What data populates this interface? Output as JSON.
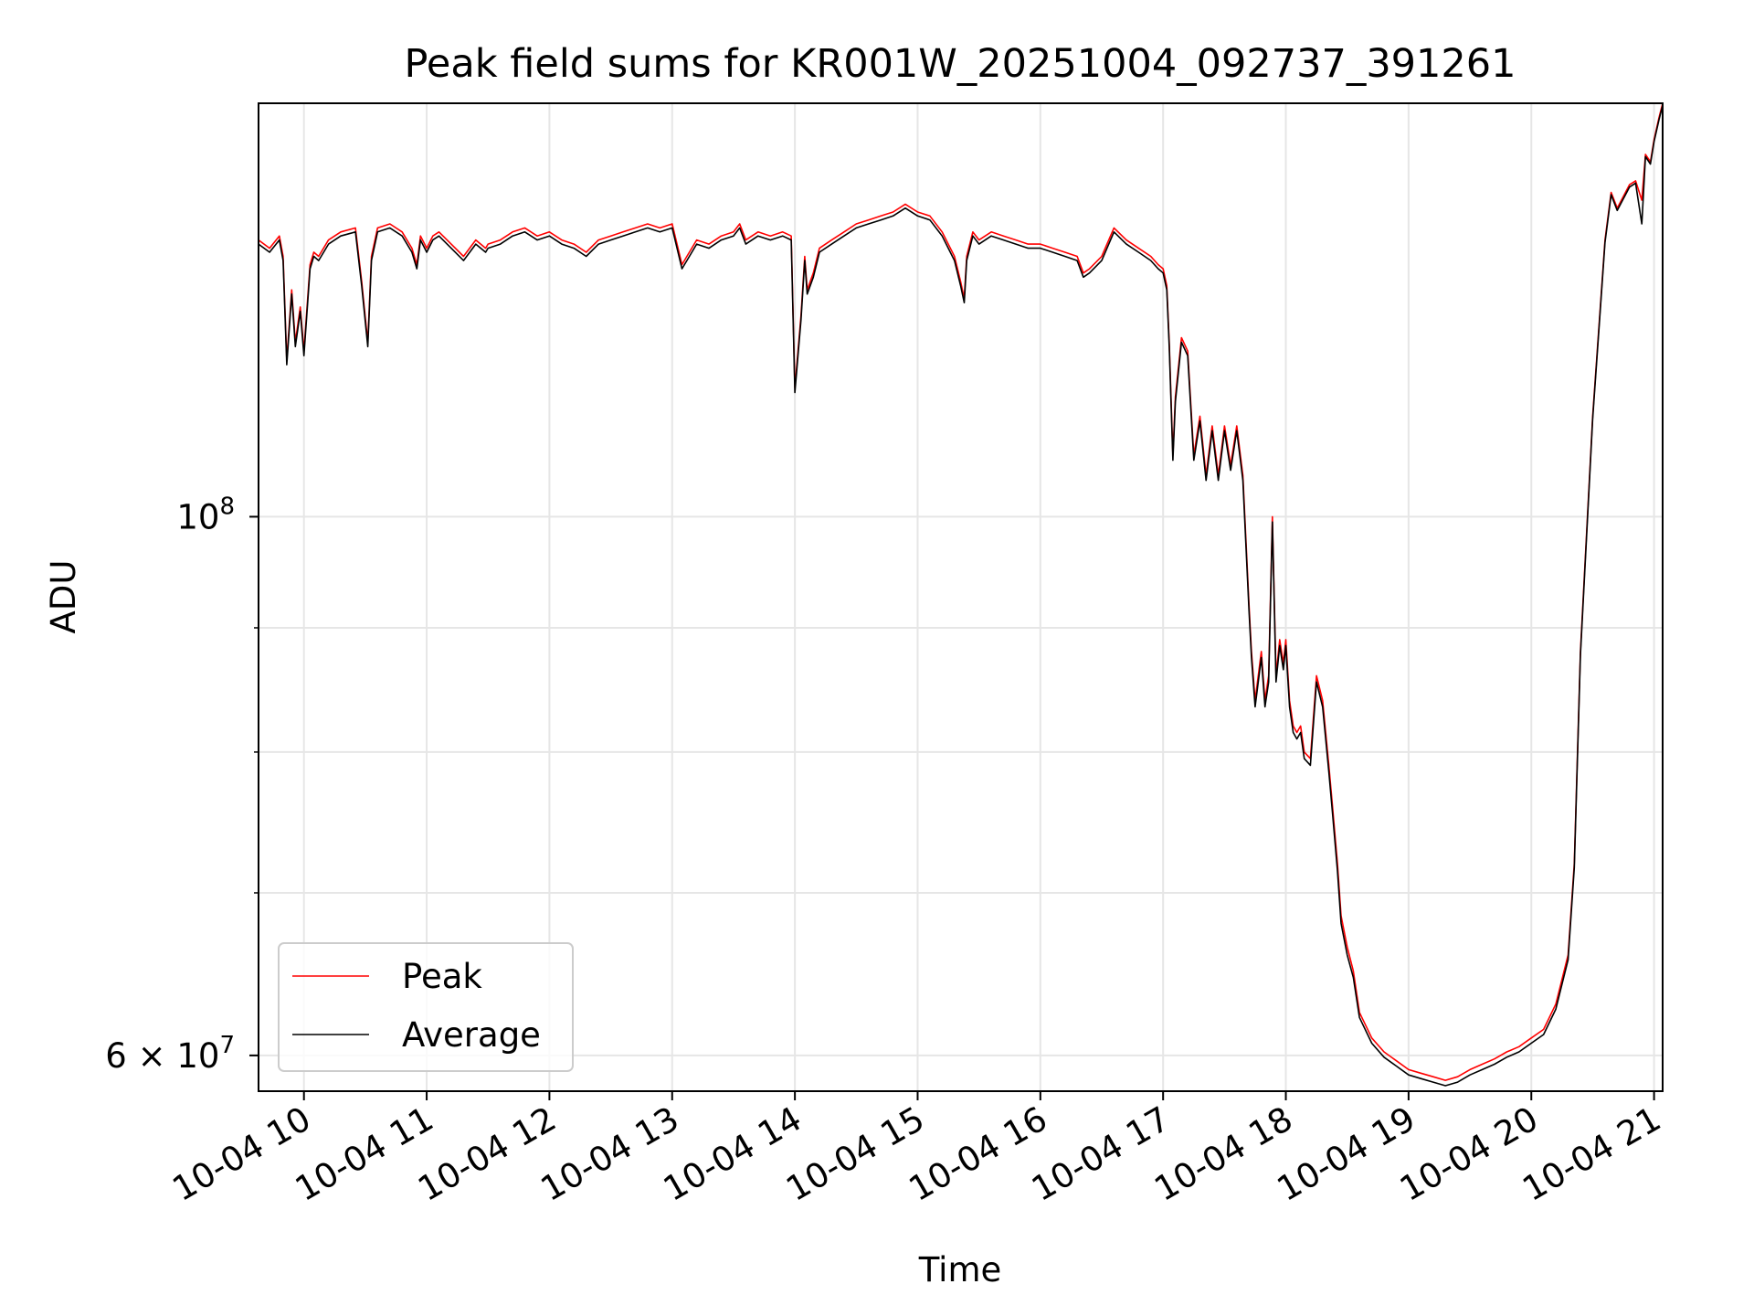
{
  "chart_data": {
    "type": "line",
    "title": "Peak field sums for KR001W_20251004_092737_391261",
    "xlabel": "Time",
    "ylabel": "ADU",
    "y_scale": "log",
    "ylim": [
      58000000,
      148000000
    ],
    "xlim_hours": [
      9.63,
      21.07
    ],
    "grid": true,
    "legend_position": "lower-left",
    "x_tick_hours": [
      10,
      11,
      12,
      13,
      14,
      15,
      16,
      17,
      18,
      19,
      20,
      21
    ],
    "x_tick_labels": [
      "10-04 10",
      "10-04 11",
      "10-04 12",
      "10-04 13",
      "10-04 14",
      "10-04 15",
      "10-04 16",
      "10-04 17",
      "10-04 18",
      "10-04 19",
      "10-04 20",
      "10-04 21"
    ],
    "y_major_ticks": [
      {
        "value": 100000000,
        "label_base": "10",
        "label_exp": "8"
      },
      {
        "value": 60000000,
        "label_base": "6 × 10",
        "label_exp": "7"
      }
    ],
    "y_minor_ticks": [
      70000000,
      80000000,
      90000000
    ],
    "series": [
      {
        "name": "Peak",
        "color": "#ff0000",
        "x_hours": [
          9.63,
          9.72,
          9.8,
          9.83,
          9.86,
          9.9,
          9.93,
          9.97,
          10.0,
          10.05,
          10.08,
          10.12,
          10.2,
          10.3,
          10.42,
          10.47,
          10.52,
          10.55,
          10.6,
          10.7,
          10.8,
          10.88,
          10.92,
          10.95,
          11.0,
          11.05,
          11.1,
          11.2,
          11.3,
          11.4,
          11.48,
          11.5,
          11.6,
          11.7,
          11.8,
          11.9,
          12.0,
          12.1,
          12.2,
          12.3,
          12.4,
          12.5,
          12.6,
          12.7,
          12.8,
          12.9,
          13.0,
          13.08,
          13.12,
          13.2,
          13.3,
          13.4,
          13.5,
          13.55,
          13.6,
          13.7,
          13.8,
          13.9,
          13.97,
          14.0,
          14.05,
          14.08,
          14.1,
          14.15,
          14.2,
          14.3,
          14.4,
          14.5,
          14.6,
          14.7,
          14.8,
          14.9,
          15.0,
          15.1,
          15.2,
          15.3,
          15.35,
          15.38,
          15.4,
          15.45,
          15.5,
          15.6,
          15.7,
          15.8,
          15.9,
          16.0,
          16.1,
          16.2,
          16.3,
          16.35,
          16.4,
          16.5,
          16.6,
          16.7,
          16.8,
          16.9,
          16.96,
          17.0,
          17.03,
          17.05,
          17.08,
          17.1,
          17.15,
          17.2,
          17.25,
          17.3,
          17.35,
          17.4,
          17.45,
          17.5,
          17.55,
          17.6,
          17.65,
          17.7,
          17.72,
          17.75,
          17.8,
          17.83,
          17.86,
          17.89,
          17.92,
          17.95,
          17.98,
          18.0,
          18.03,
          18.06,
          18.09,
          18.12,
          18.15,
          18.2,
          18.25,
          18.3,
          18.35,
          18.38,
          18.42,
          18.45,
          18.5,
          18.55,
          18.6,
          18.7,
          18.8,
          18.9,
          19.0,
          19.1,
          19.2,
          19.3,
          19.4,
          19.5,
          19.6,
          19.7,
          19.8,
          19.9,
          20.0,
          20.1,
          20.2,
          20.3,
          20.35,
          20.4,
          20.5,
          20.6,
          20.65,
          20.7,
          20.8,
          20.85,
          20.9,
          20.93,
          20.97,
          21.0,
          21.04,
          21.07
        ],
        "y_adu": [
          130000000,
          129000000,
          130500000,
          128000000,
          116000000,
          124000000,
          118000000,
          122000000,
          117000000,
          127000000,
          128500000,
          128000000,
          130000000,
          131000000,
          131500000,
          125000000,
          118000000,
          128000000,
          131500000,
          132000000,
          131000000,
          129000000,
          127000000,
          130500000,
          129000000,
          130500000,
          131000000,
          129500000,
          128000000,
          130000000,
          129000000,
          129500000,
          130000000,
          131000000,
          131500000,
          130500000,
          131000000,
          130000000,
          129500000,
          128500000,
          130000000,
          130500000,
          131000000,
          131500000,
          132000000,
          131500000,
          132000000,
          127000000,
          128000000,
          130000000,
          129500000,
          130500000,
          131000000,
          132000000,
          130000000,
          131000000,
          130500000,
          131000000,
          130500000,
          113000000,
          121000000,
          128000000,
          124000000,
          126000000,
          129000000,
          130000000,
          131000000,
          132000000,
          132500000,
          133000000,
          133500000,
          134500000,
          133500000,
          133000000,
          131000000,
          128000000,
          125000000,
          123000000,
          128000000,
          131000000,
          130000000,
          131000000,
          130500000,
          130000000,
          129500000,
          129500000,
          129000000,
          128500000,
          128000000,
          126000000,
          126500000,
          128000000,
          131500000,
          130000000,
          129000000,
          128000000,
          127000000,
          126500000,
          124500000,
          118000000,
          106000000,
          112000000,
          118500000,
          117000000,
          106000000,
          110000000,
          104000000,
          109000000,
          104000000,
          109000000,
          105000000,
          109000000,
          104000000,
          92000000,
          88000000,
          84000000,
          88000000,
          84000000,
          86000000,
          100000000,
          86000000,
          89000000,
          87000000,
          89000000,
          84000000,
          82000000,
          81500000,
          82000000,
          80000000,
          79500000,
          86000000,
          84000000,
          79000000,
          76000000,
          72000000,
          68500000,
          66500000,
          65000000,
          62500000,
          61000000,
          60200000,
          59700000,
          59200000,
          59000000,
          58800000,
          58600000,
          58800000,
          59200000,
          59500000,
          59800000,
          60200000,
          60500000,
          61000000,
          61500000,
          63000000,
          66000000,
          72000000,
          88000000,
          110000000,
          130000000,
          136000000,
          134000000,
          137000000,
          137500000,
          135000000,
          141000000,
          140000000,
          143000000,
          146000000,
          148000000
        ]
      },
      {
        "name": "Average",
        "color": "#000000",
        "x_hours": [
          9.63,
          9.72,
          9.8,
          9.83,
          9.86,
          9.9,
          9.93,
          9.97,
          10.0,
          10.05,
          10.08,
          10.12,
          10.2,
          10.3,
          10.42,
          10.47,
          10.52,
          10.55,
          10.6,
          10.7,
          10.8,
          10.88,
          10.92,
          10.95,
          11.0,
          11.05,
          11.1,
          11.2,
          11.3,
          11.4,
          11.48,
          11.5,
          11.6,
          11.7,
          11.8,
          11.9,
          12.0,
          12.1,
          12.2,
          12.3,
          12.4,
          12.5,
          12.6,
          12.7,
          12.8,
          12.9,
          13.0,
          13.08,
          13.12,
          13.2,
          13.3,
          13.4,
          13.5,
          13.55,
          13.6,
          13.7,
          13.8,
          13.9,
          13.97,
          14.0,
          14.05,
          14.08,
          14.1,
          14.15,
          14.2,
          14.3,
          14.4,
          14.5,
          14.6,
          14.7,
          14.8,
          14.9,
          15.0,
          15.1,
          15.2,
          15.3,
          15.35,
          15.38,
          15.4,
          15.45,
          15.5,
          15.6,
          15.7,
          15.8,
          15.9,
          16.0,
          16.1,
          16.2,
          16.3,
          16.35,
          16.4,
          16.5,
          16.6,
          16.7,
          16.8,
          16.9,
          16.96,
          17.0,
          17.03,
          17.05,
          17.08,
          17.1,
          17.15,
          17.2,
          17.25,
          17.3,
          17.35,
          17.4,
          17.45,
          17.5,
          17.55,
          17.6,
          17.65,
          17.7,
          17.72,
          17.75,
          17.8,
          17.83,
          17.86,
          17.89,
          17.92,
          17.95,
          17.98,
          18.0,
          18.03,
          18.06,
          18.09,
          18.12,
          18.15,
          18.2,
          18.25,
          18.3,
          18.35,
          18.38,
          18.42,
          18.45,
          18.5,
          18.55,
          18.6,
          18.7,
          18.8,
          18.9,
          19.0,
          19.1,
          19.2,
          19.3,
          19.4,
          19.5,
          19.6,
          19.7,
          19.8,
          19.9,
          20.0,
          20.1,
          20.2,
          20.3,
          20.35,
          20.4,
          20.5,
          20.6,
          20.65,
          20.7,
          20.8,
          20.85,
          20.9,
          20.93,
          20.97,
          21.0,
          21.04,
          21.07
        ],
        "y_adu": [
          129500000,
          128500000,
          130000000,
          127500000,
          115500000,
          123500000,
          117500000,
          121500000,
          116500000,
          126500000,
          128000000,
          127500000,
          129500000,
          130500000,
          131000000,
          124500000,
          117500000,
          127500000,
          131000000,
          131500000,
          130500000,
          128500000,
          126500000,
          130000000,
          128500000,
          130000000,
          130500000,
          129000000,
          127500000,
          129500000,
          128500000,
          129000000,
          129500000,
          130500000,
          131000000,
          130000000,
          130500000,
          129500000,
          129000000,
          128000000,
          129500000,
          130000000,
          130500000,
          131000000,
          131500000,
          131000000,
          131500000,
          126500000,
          127500000,
          129500000,
          129000000,
          130000000,
          130500000,
          131500000,
          129500000,
          130500000,
          130000000,
          130500000,
          130000000,
          112500000,
          120500000,
          127500000,
          123500000,
          125500000,
          128500000,
          129500000,
          130500000,
          131500000,
          132000000,
          132500000,
          133000000,
          134000000,
          133000000,
          132500000,
          130500000,
          127500000,
          124500000,
          122500000,
          127500000,
          130500000,
          129500000,
          130500000,
          130000000,
          129500000,
          129000000,
          129000000,
          128500000,
          128000000,
          127500000,
          125500000,
          126000000,
          127500000,
          131000000,
          129500000,
          128500000,
          127500000,
          126500000,
          126000000,
          124000000,
          117500000,
          105500000,
          111500000,
          118000000,
          116500000,
          105500000,
          109500000,
          103500000,
          108500000,
          103500000,
          108500000,
          104500000,
          108500000,
          103500000,
          91500000,
          87500000,
          83500000,
          87500000,
          83500000,
          85500000,
          99500000,
          85500000,
          88500000,
          86500000,
          88500000,
          83500000,
          81500000,
          81000000,
          81500000,
          79500000,
          79000000,
          85500000,
          83500000,
          78500000,
          75500000,
          71500000,
          68000000,
          66000000,
          64600000,
          62200000,
          60700000,
          59900000,
          59400000,
          58900000,
          58700000,
          58500000,
          58300000,
          58500000,
          58900000,
          59200000,
          59500000,
          59900000,
          60200000,
          60700000,
          61200000,
          62700000,
          65700000,
          71700000,
          87700000,
          109700000,
          129700000,
          135700000,
          133700000,
          136700000,
          137200000,
          132000000,
          140700000,
          139700000,
          142700000,
          145700000,
          147700000
        ]
      }
    ]
  }
}
